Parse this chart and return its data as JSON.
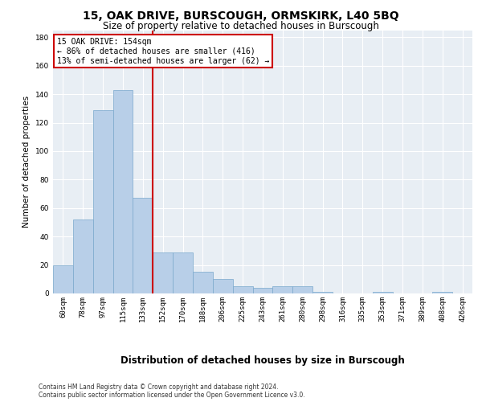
{
  "title": "15, OAK DRIVE, BURSCOUGH, ORMSKIRK, L40 5BQ",
  "subtitle": "Size of property relative to detached houses in Burscough",
  "xlabel": "Distribution of detached houses by size in Burscough",
  "ylabel": "Number of detached properties",
  "categories": [
    "60sqm",
    "78sqm",
    "97sqm",
    "115sqm",
    "133sqm",
    "152sqm",
    "170sqm",
    "188sqm",
    "206sqm",
    "225sqm",
    "243sqm",
    "261sqm",
    "280sqm",
    "298sqm",
    "316sqm",
    "335sqm",
    "353sqm",
    "371sqm",
    "389sqm",
    "408sqm",
    "426sqm"
  ],
  "values": [
    20,
    52,
    129,
    143,
    67,
    29,
    29,
    15,
    10,
    5,
    4,
    5,
    5,
    1,
    0,
    0,
    1,
    0,
    0,
    1,
    0
  ],
  "bar_color": "#b8cfe8",
  "bar_edge_color": "#7aa8cc",
  "vline_color": "#cc0000",
  "annotation_text": "15 OAK DRIVE: 154sqm\n← 86% of detached houses are smaller (416)\n13% of semi-detached houses are larger (62) →",
  "annotation_box_color": "#ffffff",
  "annotation_box_edge_color": "#cc0000",
  "ylim": [
    0,
    185
  ],
  "yticks": [
    0,
    20,
    40,
    60,
    80,
    100,
    120,
    140,
    160,
    180
  ],
  "bg_color": "#e8eef4",
  "grid_color": "#ffffff",
  "footer_line1": "Contains HM Land Registry data © Crown copyright and database right 2024.",
  "footer_line2": "Contains public sector information licensed under the Open Government Licence v3.0.",
  "title_fontsize": 10,
  "subtitle_fontsize": 8.5,
  "xlabel_fontsize": 8.5,
  "ylabel_fontsize": 7.5,
  "tick_fontsize": 6.5,
  "ann_fontsize": 7,
  "footer_fontsize": 5.5
}
